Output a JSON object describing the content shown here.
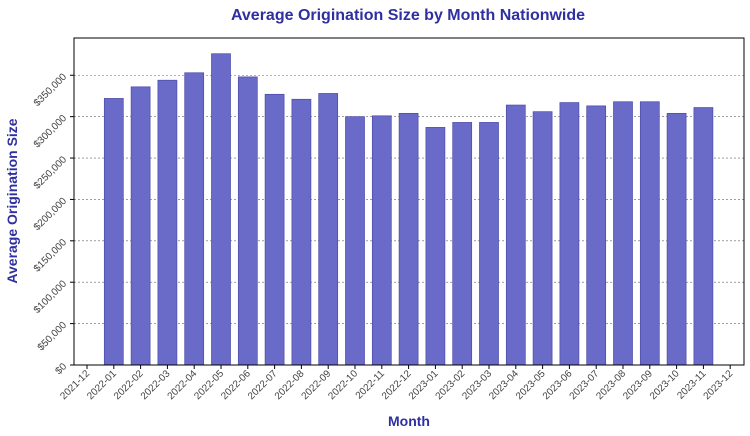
{
  "chart_data": {
    "type": "bar",
    "title": "Average Origination Size by Month Nationwide",
    "xlabel": "Month",
    "ylabel": "Average Origination Size",
    "x_tick_labels": [
      "2021-12",
      "2022-01",
      "2022-02",
      "2022-03",
      "2022-04",
      "2022-05",
      "2022-06",
      "2022-07",
      "2022-08",
      "2022-09",
      "2022-10",
      "2022-11",
      "2022-12",
      "2023-01",
      "2023-02",
      "2023-03",
      "2023-04",
      "2023-05",
      "2023-06",
      "2023-07",
      "2023-08",
      "2023-09",
      "2023-10",
      "2023-11",
      "2023-12"
    ],
    "categories": [
      "2022-01",
      "2022-02",
      "2022-03",
      "2022-04",
      "2022-05",
      "2022-06",
      "2022-07",
      "2022-08",
      "2022-09",
      "2022-10",
      "2022-11",
      "2022-12",
      "2023-01",
      "2023-02",
      "2023-03",
      "2023-04",
      "2023-05",
      "2023-06",
      "2023-07",
      "2023-08",
      "2023-09",
      "2023-10",
      "2023-11"
    ],
    "values": [
      322000,
      336000,
      344000,
      353000,
      376000,
      348000,
      327000,
      321000,
      328000,
      300000,
      301000,
      304000,
      287000,
      293000,
      293000,
      314000,
      306000,
      317000,
      313000,
      318000,
      318000,
      304000,
      311000
    ],
    "y_ticks": [
      0,
      50000,
      100000,
      150000,
      200000,
      250000,
      300000,
      350000
    ],
    "y_tick_labels": [
      "$0",
      "$50,000",
      "$100,000",
      "$150,000",
      "$200,000",
      "$250,000",
      "$300,000",
      "$350,000"
    ],
    "ylim": [
      0,
      395000
    ],
    "grid": true,
    "bar_color": "#6a6ac8"
  }
}
